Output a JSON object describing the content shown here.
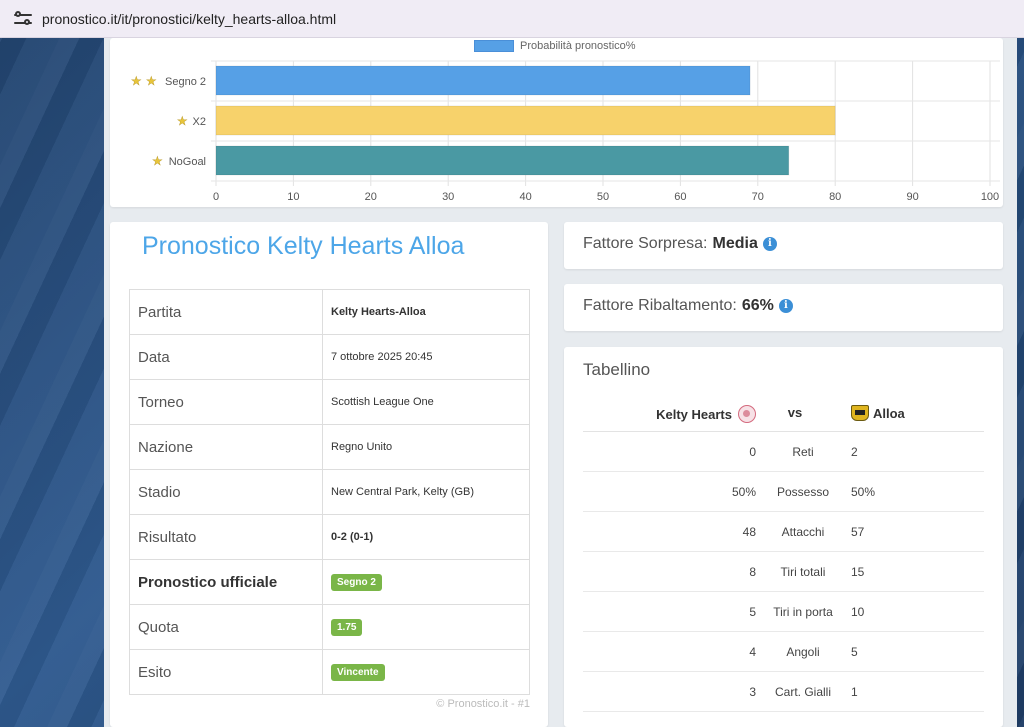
{
  "browser": {
    "url": "pronostico.it/it/pronostici/kelty_hearts-alloa.html"
  },
  "chart_data": {
    "type": "bar",
    "orientation": "horizontal",
    "legend": "Probabilità pronostico%",
    "legend_position": "top",
    "categories": [
      "Segno 2",
      "X2",
      "NoGoal"
    ],
    "category_stars": [
      2,
      1,
      1
    ],
    "values": [
      69,
      80,
      74
    ],
    "colors": [
      "#56a0e6",
      "#f7d26b",
      "#4a99a3"
    ],
    "xlim": [
      0,
      100
    ],
    "ticks": [
      0,
      10,
      20,
      30,
      40,
      50,
      60,
      70,
      80,
      90,
      100
    ],
    "grid": true
  },
  "pronostico": {
    "title": "Pronostico Kelty Hearts Alloa",
    "rows": [
      {
        "label": "Partita",
        "value": "Kelty Hearts-Alloa"
      },
      {
        "label": "Data",
        "value": "7 ottobre 2025 20:45"
      },
      {
        "label": "Torneo",
        "value": "Scottish League One"
      },
      {
        "label": "Nazione",
        "value": "Regno Unito"
      },
      {
        "label": "Stadio",
        "value": "New Central Park, Kelty (GB)"
      },
      {
        "label": "Risultato",
        "value": "0-2 (0-1)"
      },
      {
        "label": "Pronostico ufficiale",
        "value": "Segno 2"
      },
      {
        "label": "Quota",
        "value": "1.75"
      },
      {
        "label": "Esito",
        "value": "Vincente"
      }
    ],
    "footer": "© Pronostico.it - #1"
  },
  "fattore_sorpresa": {
    "label": "Fattore Sorpresa:",
    "value": "Media"
  },
  "fattore_ribaltamento": {
    "label": "Fattore Ribaltamento:",
    "value": "66%"
  },
  "tabellino": {
    "title": "Tabellino",
    "home": "Kelty Hearts",
    "vs": "vs",
    "away": "Alloa",
    "stats": [
      {
        "home": "0",
        "label": "Reti",
        "away": "2"
      },
      {
        "home": "50%",
        "label": "Possesso",
        "away": "50%"
      },
      {
        "home": "48",
        "label": "Attacchi",
        "away": "57"
      },
      {
        "home": "8",
        "label": "Tiri totali",
        "away": "15"
      },
      {
        "home": "5",
        "label": "Tiri in porta",
        "away": "10"
      },
      {
        "home": "4",
        "label": "Angoli",
        "away": "5"
      },
      {
        "home": "3",
        "label": "Cart. Gialli",
        "away": "1"
      }
    ]
  }
}
